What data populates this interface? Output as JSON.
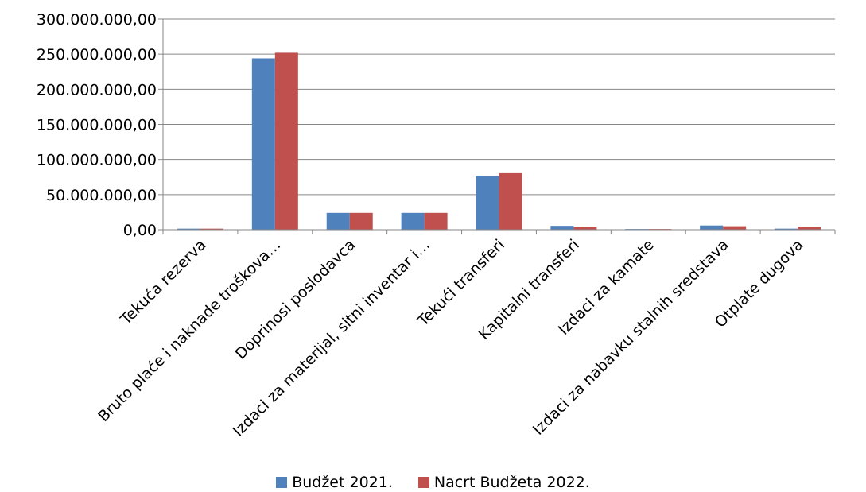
{
  "chart_data": {
    "type": "bar",
    "title": "",
    "xlabel": "",
    "ylabel": "",
    "ylim": [
      0,
      300000000
    ],
    "yticks": [
      0,
      50000000,
      100000000,
      150000000,
      200000000,
      250000000,
      300000000
    ],
    "ytick_labels": [
      "0,00",
      "50.000.000,00",
      "100.000.000,00",
      "150.000.000,00",
      "200.000.000,00",
      "250.000.000,00",
      "300.000.000,00"
    ],
    "grid": true,
    "legend_position": "bottom",
    "categories": [
      "Tekuća rezerva",
      "Bruto plaće i naknade troškova…",
      "Doprinosi poslodavca",
      "Izdaci za materijal, sitni inventar i…",
      "Tekući transferi",
      "Kapitalni transferi",
      "Izdaci za kamate",
      "Izdaci za nabavku stalnih sredstava",
      "Otplate dugova"
    ],
    "series": [
      {
        "name": "Budžet 2021.",
        "color": "#4F81BD",
        "values": [
          1500000,
          244000000,
          24000000,
          24000000,
          77000000,
          5500000,
          1000000,
          6000000,
          1500000
        ]
      },
      {
        "name": "Nacrt Budžeta 2022.",
        "color": "#C0504D",
        "values": [
          1500000,
          252000000,
          24000000,
          24000000,
          80500000,
          4500000,
          1000000,
          5000000,
          4500000
        ]
      }
    ]
  }
}
